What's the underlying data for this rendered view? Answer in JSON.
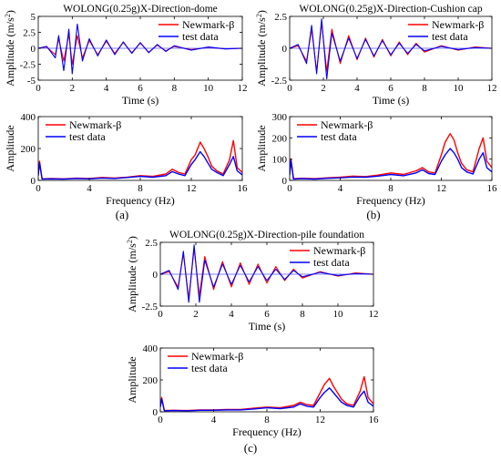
{
  "colors": {
    "newmark": "#ff0000",
    "test": "#0000ff",
    "axis": "#000000"
  },
  "chart_data": [
    {
      "id": "a-time",
      "type": "line",
      "kind": "time",
      "title": "WOLONG(0.25g)X-Direction-dome",
      "xlabel": "Time (s)",
      "ylabel": "Amplitude (m/s2)",
      "xlim": [
        0,
        12
      ],
      "ylim": [
        -5,
        5
      ],
      "xticks": [
        0,
        2,
        4,
        6,
        8,
        10,
        12
      ],
      "yticks": [
        -5,
        -2.5,
        0,
        2.5,
        5
      ],
      "xtick_labels": [
        "0",
        "2",
        "4",
        "6",
        "8",
        "10",
        "12"
      ],
      "ytick_labels": [
        "-5",
        "-2.5",
        "0",
        "2.5",
        "5"
      ],
      "legend": {
        "position": "top-right",
        "entries": [
          "Newmark-β",
          "test data"
        ]
      },
      "series": [
        {
          "name": "Newmark-β",
          "color": "#ff0000",
          "x": [
            0,
            0.5,
            1,
            1.2,
            1.5,
            1.8,
            2,
            2.3,
            2.6,
            3,
            3.5,
            4,
            4.5,
            5,
            5.5,
            6,
            6.5,
            7,
            7.5,
            8,
            9,
            10,
            11,
            12
          ],
          "y": [
            0,
            0.2,
            -1,
            1.5,
            -2,
            2.2,
            -2.5,
            2,
            -1.5,
            1.2,
            -1,
            1.1,
            -0.8,
            0.9,
            -0.7,
            0.8,
            -0.6,
            0.5,
            -0.4,
            0.3,
            -0.2,
            0.15,
            -0.1,
            0
          ]
        },
        {
          "name": "test data",
          "color": "#0000ff",
          "x": [
            0,
            0.5,
            1,
            1.2,
            1.5,
            1.8,
            2,
            2.3,
            2.6,
            3,
            3.5,
            4,
            4.5,
            5,
            5.5,
            6,
            6.5,
            7,
            7.5,
            8,
            9,
            10,
            11,
            12
          ],
          "y": [
            0,
            0.3,
            -1.5,
            2,
            -3.5,
            3,
            -4,
            3.8,
            -2,
            1.5,
            -1.2,
            1.3,
            -1,
            1,
            -0.8,
            0.9,
            -0.7,
            0.6,
            -0.5,
            0.4,
            -0.3,
            0.2,
            -0.1,
            0
          ]
        }
      ]
    },
    {
      "id": "a-freq",
      "type": "line",
      "kind": "freq",
      "xlabel": "Frequency (Hz)",
      "ylabel": "Amplitude",
      "xlim": [
        0,
        16
      ],
      "ylim": [
        0,
        400
      ],
      "xticks": [
        0,
        4,
        8,
        12,
        16
      ],
      "yticks": [
        0,
        200,
        400
      ],
      "xtick_labels": [
        "0",
        "4",
        "8",
        "12",
        "16"
      ],
      "ytick_labels": [
        "0",
        "200",
        "400"
      ],
      "legend": {
        "position": "top-left",
        "entries": [
          "Newmark-β",
          "test data"
        ]
      },
      "series": [
        {
          "name": "Newmark-β",
          "color": "#ff0000",
          "x": [
            0,
            0.1,
            0.3,
            1,
            2,
            3,
            4,
            5,
            6,
            7,
            8,
            9,
            10,
            10.5,
            11,
            11.5,
            12,
            12.3,
            12.7,
            13,
            13.3,
            13.6,
            14,
            14.5,
            15,
            15.3,
            15.6,
            16
          ],
          "y": [
            40,
            120,
            10,
            12,
            10,
            14,
            12,
            18,
            15,
            20,
            30,
            25,
            40,
            70,
            50,
            40,
            130,
            160,
            240,
            200,
            150,
            90,
            60,
            40,
            130,
            250,
            80,
            50
          ]
        },
        {
          "name": "test data",
          "color": "#0000ff",
          "x": [
            0,
            0.1,
            0.3,
            1,
            2,
            3,
            4,
            5,
            6,
            7,
            8,
            9,
            10,
            10.5,
            11,
            11.5,
            12,
            12.3,
            12.7,
            13,
            13.3,
            13.6,
            14,
            14.5,
            15,
            15.3,
            15.6,
            16
          ],
          "y": [
            30,
            110,
            8,
            10,
            8,
            12,
            10,
            15,
            12,
            18,
            25,
            20,
            30,
            55,
            40,
            30,
            100,
            130,
            180,
            150,
            110,
            70,
            50,
            30,
            100,
            150,
            60,
            35
          ]
        }
      ]
    },
    {
      "id": "b-time",
      "type": "line",
      "kind": "time",
      "title": "WOLONG(0.25g)X-Direction-Cushion cap",
      "xlabel": "Time (s)",
      "ylabel": "Amplitude (m/s2)",
      "xlim": [
        0,
        12
      ],
      "ylim": [
        -2.5,
        2.5
      ],
      "xticks": [
        0,
        2,
        4,
        6,
        8,
        10,
        12
      ],
      "yticks": [
        -2.5,
        0,
        2.5
      ],
      "xtick_labels": [
        "0",
        "2",
        "4",
        "6",
        "8",
        "10",
        "12"
      ],
      "ytick_labels": [
        "-2.5",
        "0",
        "2.5"
      ],
      "legend": {
        "position": "top-right",
        "entries": [
          "Newmark-β",
          "test data"
        ]
      },
      "series": [
        {
          "name": "Newmark-β",
          "color": "#ff0000",
          "x": [
            0,
            0.5,
            1,
            1.3,
            1.6,
            1.9,
            2.2,
            2.5,
            3,
            3.5,
            4,
            4.5,
            5,
            5.5,
            6,
            6.5,
            7,
            7.5,
            8,
            9,
            10,
            11,
            12
          ],
          "y": [
            0,
            0.2,
            -1,
            1.5,
            -1.8,
            2,
            -1.8,
            1.5,
            -1.2,
            1,
            -0.9,
            0.8,
            -0.7,
            0.7,
            -0.6,
            0.5,
            -0.5,
            0.4,
            -0.3,
            0.2,
            -0.15,
            0.1,
            0
          ]
        },
        {
          "name": "test data",
          "color": "#0000ff",
          "x": [
            0,
            0.5,
            1,
            1.3,
            1.6,
            1.9,
            2.2,
            2.5,
            3,
            3.5,
            4,
            4.5,
            5,
            5.5,
            6,
            6.5,
            7,
            7.5,
            8,
            9,
            10,
            11,
            12
          ],
          "y": [
            0,
            0.3,
            -1.2,
            1.8,
            -2,
            2.3,
            -2.4,
            1.2,
            -1,
            0.8,
            -0.8,
            0.7,
            -0.6,
            0.6,
            -0.5,
            0.4,
            -0.4,
            0.3,
            -0.2,
            0.15,
            -0.1,
            0.05,
            0
          ]
        }
      ]
    },
    {
      "id": "b-freq",
      "type": "line",
      "kind": "freq",
      "xlabel": "Frequency (Hz)",
      "ylabel": "Amplitude",
      "xlim": [
        0,
        16
      ],
      "ylim": [
        0,
        300
      ],
      "xticks": [
        0,
        4,
        8,
        12,
        16
      ],
      "yticks": [
        0,
        100,
        200,
        300
      ],
      "xtick_labels": [
        "0",
        "4",
        "8",
        "12",
        "16"
      ],
      "ytick_labels": [
        "0",
        "100",
        "200",
        "300"
      ],
      "legend": {
        "position": "top-left",
        "entries": [
          "Newmark-β",
          "test data"
        ]
      },
      "series": [
        {
          "name": "Newmark-β",
          "color": "#ff0000",
          "x": [
            0,
            0.1,
            0.3,
            1,
            2,
            3,
            4,
            5,
            6,
            7,
            8,
            9,
            10,
            10.5,
            11,
            11.5,
            12,
            12.3,
            12.7,
            13,
            13.3,
            13.6,
            14,
            14.5,
            15,
            15.3,
            15.6,
            16
          ],
          "y": [
            30,
            100,
            8,
            10,
            8,
            12,
            15,
            20,
            18,
            25,
            35,
            28,
            45,
            60,
            40,
            35,
            120,
            180,
            220,
            190,
            130,
            80,
            50,
            40,
            150,
            200,
            90,
            60
          ]
        },
        {
          "name": "test data",
          "color": "#0000ff",
          "x": [
            0,
            0.1,
            0.3,
            1,
            2,
            3,
            4,
            5,
            6,
            7,
            8,
            9,
            10,
            10.5,
            11,
            11.5,
            12,
            12.3,
            12.7,
            13,
            13.3,
            13.6,
            14,
            14.5,
            15,
            15.3,
            15.6,
            16
          ],
          "y": [
            25,
            95,
            6,
            8,
            6,
            10,
            12,
            16,
            15,
            20,
            28,
            22,
            35,
            50,
            32,
            28,
            90,
            120,
            150,
            130,
            100,
            60,
            40,
            30,
            100,
            130,
            60,
            40
          ]
        }
      ]
    },
    {
      "id": "c-time",
      "type": "line",
      "kind": "time",
      "title": "WOLONG(0.25g)X-Direction-pile foundation",
      "xlabel": "Time (s)",
      "ylabel": "Amplitude (m/s2)",
      "xlim": [
        0,
        12
      ],
      "ylim": [
        -2.5,
        2.5
      ],
      "xticks": [
        0,
        2,
        4,
        6,
        8,
        10,
        12
      ],
      "yticks": [
        -2.5,
        0,
        2.5
      ],
      "xtick_labels": [
        "0",
        "2",
        "4",
        "6",
        "8",
        "10",
        "12"
      ],
      "ytick_labels": [
        "-2.5",
        "0",
        "2.5"
      ],
      "legend": {
        "position": "top-right",
        "entries": [
          "Newmark-β",
          "test data"
        ]
      },
      "series": [
        {
          "name": "Newmark-β",
          "color": "#ff0000",
          "x": [
            0,
            0.5,
            1,
            1.3,
            1.6,
            1.9,
            2.2,
            2.5,
            3,
            3.5,
            4,
            4.5,
            5,
            5.5,
            6,
            6.5,
            7,
            7.5,
            8,
            9,
            10,
            11,
            12
          ],
          "y": [
            0,
            0.2,
            -1,
            1.6,
            -1.9,
            2,
            -1.7,
            1.4,
            -1.2,
            1,
            -1,
            0.9,
            -0.8,
            0.8,
            -0.7,
            0.6,
            -0.5,
            0.4,
            -0.3,
            0.2,
            -0.15,
            0.1,
            0
          ]
        },
        {
          "name": "test data",
          "color": "#0000ff",
          "x": [
            0,
            0.5,
            1,
            1.3,
            1.6,
            1.9,
            2.2,
            2.5,
            3,
            3.5,
            4,
            4.5,
            5,
            5.5,
            6,
            6.5,
            7,
            7.5,
            8,
            9,
            10,
            11,
            12
          ],
          "y": [
            0,
            0.3,
            -1.2,
            1.8,
            -2.2,
            2.3,
            -2.2,
            1.1,
            -1,
            0.8,
            -0.8,
            0.7,
            -0.6,
            0.6,
            -0.5,
            0.4,
            -0.4,
            0.3,
            -0.2,
            0.15,
            -0.1,
            0.05,
            0
          ]
        }
      ]
    },
    {
      "id": "c-freq",
      "type": "line",
      "kind": "freq",
      "xlabel": "Frequency (Hz)",
      "ylabel": "Amplitude",
      "xlim": [
        0,
        16
      ],
      "ylim": [
        0,
        400
      ],
      "xticks": [
        0,
        4,
        8,
        12,
        16
      ],
      "yticks": [
        0,
        200,
        400
      ],
      "xtick_labels": [
        "0",
        "4",
        "8",
        "12",
        "16"
      ],
      "ytick_labels": [
        "0",
        "200",
        "400"
      ],
      "legend": {
        "position": "top-left",
        "entries": [
          "Newmark-β",
          "test data"
        ]
      },
      "series": [
        {
          "name": "Newmark-β",
          "color": "#ff0000",
          "x": [
            0,
            0.1,
            0.3,
            1,
            2,
            3,
            4,
            5,
            6,
            7,
            8,
            9,
            10,
            10.5,
            11,
            11.5,
            12,
            12.3,
            12.7,
            13,
            13.3,
            13.6,
            14,
            14.5,
            15,
            15.3,
            15.6,
            16
          ],
          "y": [
            35,
            90,
            8,
            10,
            8,
            12,
            12,
            15,
            15,
            22,
            30,
            25,
            40,
            60,
            45,
            40,
            120,
            170,
            210,
            160,
            120,
            80,
            50,
            40,
            130,
            220,
            90,
            50
          ]
        },
        {
          "name": "test data",
          "color": "#0000ff",
          "x": [
            0,
            0.1,
            0.3,
            1,
            2,
            3,
            4,
            5,
            6,
            7,
            8,
            9,
            10,
            10.5,
            11,
            11.5,
            12,
            12.3,
            12.7,
            13,
            13.3,
            13.6,
            14,
            14.5,
            15,
            15.3,
            15.6,
            16
          ],
          "y": [
            30,
            80,
            6,
            8,
            6,
            10,
            10,
            12,
            12,
            18,
            25,
            20,
            30,
            50,
            35,
            30,
            90,
            120,
            150,
            120,
            90,
            60,
            40,
            30,
            100,
            130,
            60,
            35
          ]
        }
      ]
    }
  ],
  "panel_labels": {
    "a": "(a)",
    "b": "(b)",
    "c": "(c)"
  }
}
